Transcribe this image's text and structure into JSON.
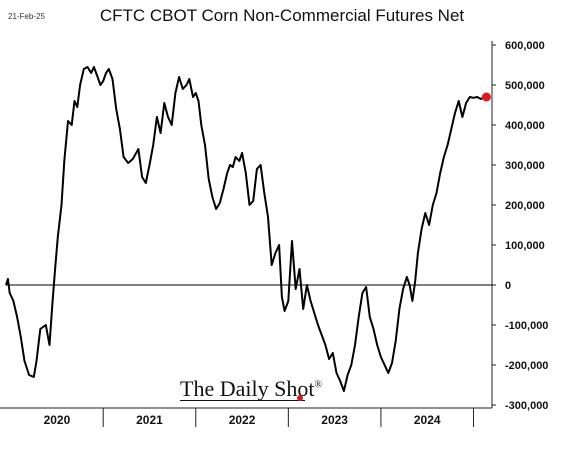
{
  "date_stamp": "21-Feb-25",
  "chart_data": {
    "type": "line",
    "title": "CFTC CBOT Corn Non-Commercial Futures Net",
    "xlabel": "",
    "ylabel": "",
    "ylim": [
      -300000,
      600000
    ],
    "yticks": [
      600000,
      500000,
      400000,
      300000,
      200000,
      100000,
      0,
      -100000,
      -200000,
      -300000
    ],
    "ytick_labels": [
      "600,000",
      "500,000",
      "400,000",
      "300,000",
      "200,000",
      "100,000",
      "0",
      "-100,000",
      "-200,000",
      "-300,000"
    ],
    "xlim": [
      2019.95,
      2025.2
    ],
    "x_categories": [
      "2020",
      "2021",
      "2022",
      "2023",
      "2024"
    ],
    "x_category_centers": [
      2020.5,
      2021.5,
      2022.5,
      2023.5,
      2024.5
    ],
    "x_dividers": [
      2021.0,
      2022.0,
      2023.0,
      2024.0,
      2025.0
    ],
    "line_color": "#000000",
    "marker_color": "#e0191f",
    "zero_line": true,
    "grid": false,
    "series": [
      {
        "x": [
          2019.95,
          2019.97,
          2019.99,
          2020.03,
          2020.07,
          2020.11,
          2020.15,
          2020.2,
          2020.25,
          2020.28,
          2020.32,
          2020.38,
          2020.42,
          2020.45,
          2020.48,
          2020.51,
          2020.55,
          2020.58,
          2020.62,
          2020.66,
          2020.69,
          2020.72,
          2020.75,
          2020.79,
          2020.83,
          2020.87,
          2020.9,
          2020.94,
          2020.97,
          2021.0,
          2021.03,
          2021.06,
          2021.1,
          2021.14,
          2021.18,
          2021.22,
          2021.27,
          2021.32,
          2021.38,
          2021.42,
          2021.46,
          2021.5,
          2021.54,
          2021.58,
          2021.62,
          2021.66,
          2021.7,
          2021.74,
          2021.78,
          2021.82,
          2021.86,
          2021.9,
          2021.93,
          2021.97,
          2022.0,
          2022.03,
          2022.06,
          2022.1,
          2022.14,
          2022.18,
          2022.22,
          2022.26,
          2022.3,
          2022.34,
          2022.37,
          2022.4,
          2022.43,
          2022.47,
          2022.5,
          2022.54,
          2022.58,
          2022.62,
          2022.66,
          2022.7,
          2022.74,
          2022.78,
          2022.82,
          2022.86,
          2022.9,
          2022.93,
          2022.96,
          2023.0,
          2023.04,
          2023.08,
          2023.12,
          2023.16,
          2023.2,
          2023.24,
          2023.28,
          2023.32,
          2023.36,
          2023.4,
          2023.44,
          2023.48,
          2023.52,
          2023.56,
          2023.6,
          2023.64,
          2023.68,
          2023.72,
          2023.76,
          2023.8,
          2023.84,
          2023.88,
          2023.92,
          2023.96,
          2024.0,
          2024.04,
          2024.08,
          2024.12,
          2024.16,
          2024.2,
          2024.24,
          2024.28,
          2024.31,
          2024.34,
          2024.37,
          2024.4,
          2024.44,
          2024.48,
          2024.52,
          2024.56,
          2024.6,
          2024.64,
          2024.68,
          2024.72,
          2024.76,
          2024.8,
          2024.84,
          2024.88,
          2024.92,
          2024.96,
          2025.0,
          2025.04,
          2025.08,
          2025.12,
          2025.14
        ],
        "values": [
          0,
          15000,
          -20000,
          -40000,
          -80000,
          -130000,
          -190000,
          -225000,
          -230000,
          -190000,
          -110000,
          -100000,
          -150000,
          -50000,
          40000,
          120000,
          200000,
          310000,
          410000,
          400000,
          460000,
          445000,
          500000,
          540000,
          545000,
          530000,
          545000,
          520000,
          500000,
          510000,
          530000,
          540000,
          515000,
          440000,
          390000,
          320000,
          305000,
          315000,
          340000,
          270000,
          255000,
          300000,
          350000,
          420000,
          380000,
          455000,
          420000,
          400000,
          480000,
          520000,
          490000,
          500000,
          515000,
          470000,
          480000,
          460000,
          400000,
          350000,
          265000,
          220000,
          190000,
          205000,
          240000,
          280000,
          300000,
          295000,
          320000,
          310000,
          330000,
          280000,
          200000,
          210000,
          290000,
          300000,
          230000,
          170000,
          50000,
          80000,
          100000,
          -30000,
          -65000,
          -40000,
          110000,
          -10000,
          40000,
          -60000,
          0,
          -40000,
          -70000,
          -100000,
          -125000,
          -150000,
          -185000,
          -170000,
          -220000,
          -240000,
          -265000,
          -225000,
          -200000,
          -150000,
          -80000,
          -20000,
          -5000,
          -80000,
          -110000,
          -150000,
          -180000,
          -200000,
          -220000,
          -195000,
          -140000,
          -60000,
          -10000,
          20000,
          0,
          -40000,
          10000,
          80000,
          140000,
          180000,
          150000,
          200000,
          230000,
          280000,
          320000,
          350000,
          390000,
          430000,
          460000,
          420000,
          455000,
          470000,
          468000,
          470000,
          465000,
          470000,
          470000
        ],
        "marker_last": true
      }
    ]
  },
  "brand": {
    "name": "The Daily Shot",
    "reg": "®"
  }
}
